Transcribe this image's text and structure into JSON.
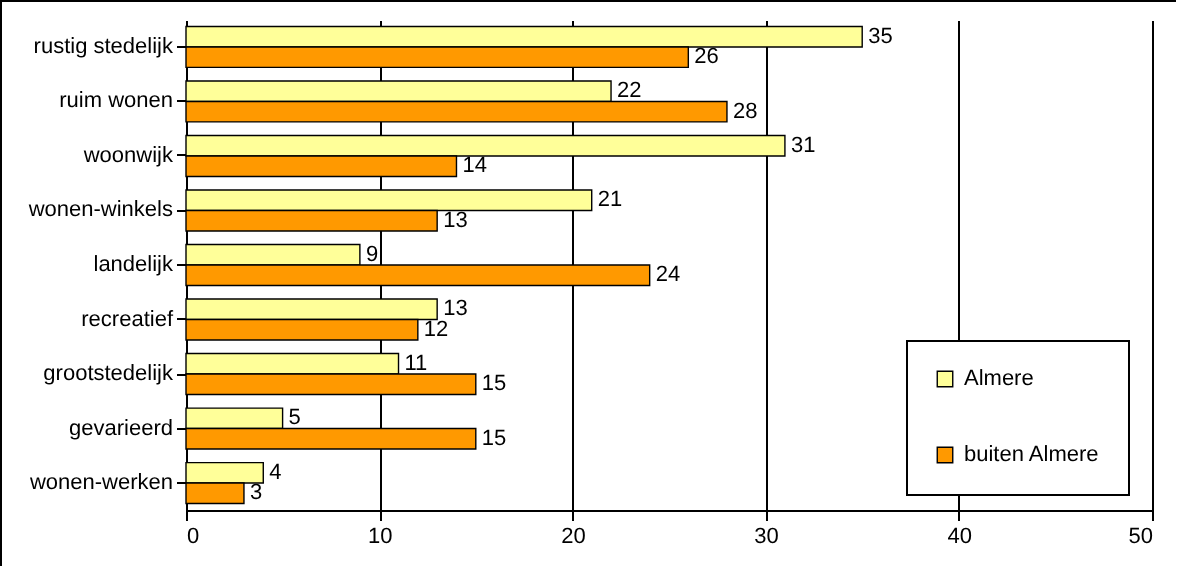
{
  "chart_data": {
    "type": "bar",
    "orientation": "horizontal",
    "categories": [
      "rustig stedelijk",
      "ruim wonen",
      "woonwijk",
      "wonen-winkels",
      "landelijk",
      "recreatief",
      "grootstedelijk",
      "gevarieerd",
      "wonen-werken"
    ],
    "series": [
      {
        "name": "Almere",
        "color": "#ffff99",
        "values": [
          35,
          22,
          31,
          21,
          9,
          13,
          11,
          5,
          4
        ]
      },
      {
        "name": "buiten Almere",
        "color": "#ff9900",
        "values": [
          26,
          28,
          14,
          13,
          24,
          12,
          15,
          15,
          3
        ]
      }
    ],
    "xlim": [
      0,
      50
    ],
    "xticks": [
      0,
      10,
      20,
      30,
      40,
      50
    ],
    "grid": "x",
    "legend": "bottom right",
    "data_labels": true
  }
}
